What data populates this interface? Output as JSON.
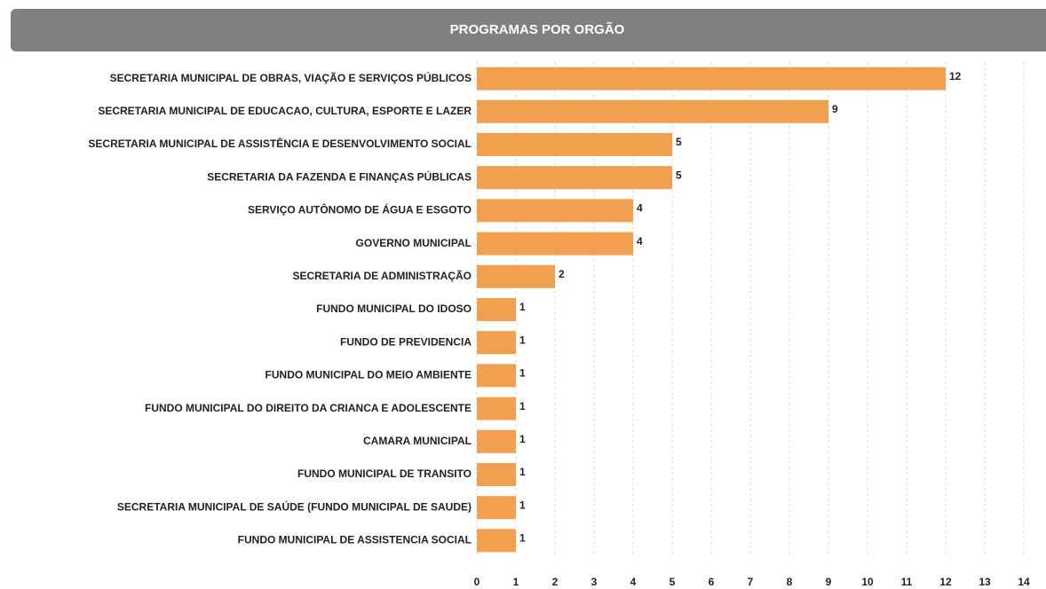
{
  "chart_data": {
    "type": "bar",
    "orientation": "horizontal",
    "title": "PROGRAMAS POR ORGÃO",
    "categories": [
      "SECRETARIA MUNICIPAL DE OBRAS, VIAÇÃO E SERVIÇOS PÚBLICOS",
      "SECRETARIA MUNICIPAL DE EDUCACAO, CULTURA, ESPORTE E LAZER",
      "SECRETARIA MUNICIPAL DE ASSISTÊNCIA E DESENVOLVIMENTO SOCIAL",
      "SECRETARIA DA FAZENDA E FINANÇAS PÚBLICAS",
      "SERVIÇO AUTÔNOMO DE ÁGUA E ESGOTO",
      "GOVERNO MUNICIPAL",
      "SECRETARIA DE ADMINISTRAÇÃO",
      "FUNDO MUNICIPAL DO IDOSO",
      "FUNDO DE PREVIDENCIA",
      "FUNDO MUNICIPAL DO MEIO AMBIENTE",
      "FUNDO MUNICIPAL DO DIREITO DA CRIANCA E ADOLESCENTE",
      "CAMARA MUNICIPAL",
      "FUNDO MUNICIPAL DE TRANSITO",
      "SECRETARIA MUNICIPAL DE SAÚDE (FUNDO MUNICIPAL DE SAUDE)",
      "FUNDO MUNICIPAL DE ASSISTENCIA SOCIAL"
    ],
    "values": [
      12,
      9,
      5,
      5,
      4,
      4,
      2,
      1,
      1,
      1,
      1,
      1,
      1,
      1,
      1
    ],
    "color": "#f2a050",
    "xlim": [
      0,
      14
    ],
    "xticks": [
      0,
      1,
      2,
      3,
      4,
      5,
      6,
      7,
      8,
      9,
      10,
      11,
      12,
      13,
      14
    ],
    "grid": true
  }
}
